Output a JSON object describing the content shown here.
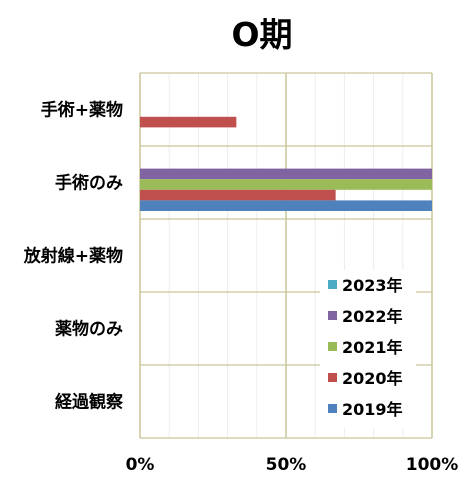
{
  "chart_data": {
    "type": "bar",
    "orientation": "horizontal",
    "title": "O期",
    "categories": [
      "手術+薬物",
      "手術のみ",
      "放射線+薬物",
      "薬物のみ",
      "経過観察"
    ],
    "x_ticks": [
      "0%",
      "50%",
      "100%"
    ],
    "xlim": [
      0,
      100
    ],
    "grid": true,
    "legend_position": "bottom-right",
    "series": [
      {
        "name": "2023年",
        "color": "#4bacc6",
        "values": [
          0,
          0,
          0,
          0,
          0
        ]
      },
      {
        "name": "2022年",
        "color": "#8064a2",
        "values": [
          0,
          100,
          0,
          0,
          0
        ]
      },
      {
        "name": "2021年",
        "color": "#9bbb59",
        "values": [
          0,
          100,
          0,
          0,
          0
        ]
      },
      {
        "name": "2020年",
        "color": "#c0504d",
        "values": [
          33,
          67,
          0,
          0,
          0
        ]
      },
      {
        "name": "2019年",
        "color": "#4f81bd",
        "values": [
          0,
          100,
          0,
          0,
          0
        ]
      }
    ]
  }
}
